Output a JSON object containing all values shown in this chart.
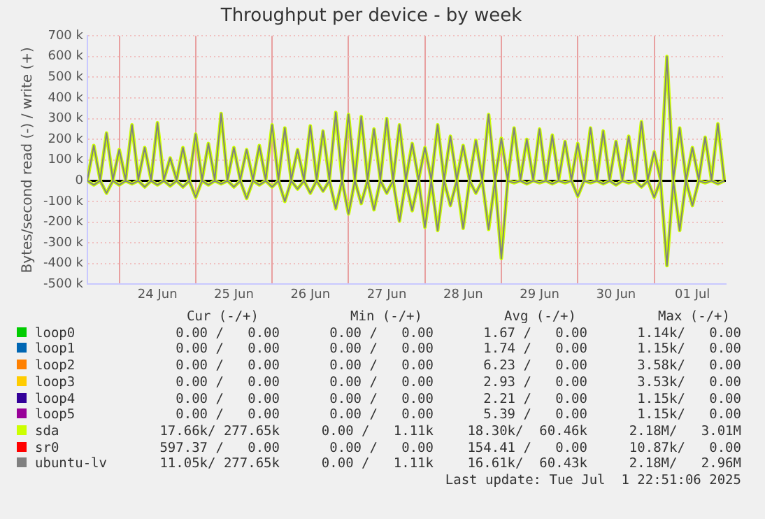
{
  "chart_data": {
    "type": "line",
    "title": "Throughput per device - by week",
    "ylabel": "Bytes/second read (-) / write (+)",
    "x": [
      "2025-06-23T14:00",
      "2025-06-23T16:00",
      "2025-06-23T18:00",
      "2025-06-23T20:00",
      "2025-06-23T22:00",
      "2025-06-24T00:00",
      "2025-06-24T02:00",
      "2025-06-24T04:00",
      "2025-06-24T06:00",
      "2025-06-24T08:00",
      "2025-06-24T10:00",
      "2025-06-24T12:00",
      "2025-06-24T14:00",
      "2025-06-24T16:00",
      "2025-06-24T18:00",
      "2025-06-24T20:00",
      "2025-06-24T22:00",
      "2025-06-25T00:00",
      "2025-06-25T02:00",
      "2025-06-25T04:00",
      "2025-06-25T06:00",
      "2025-06-25T08:00",
      "2025-06-25T10:00",
      "2025-06-25T12:00",
      "2025-06-25T14:00",
      "2025-06-25T16:00",
      "2025-06-25T18:00",
      "2025-06-25T20:00",
      "2025-06-25T22:00",
      "2025-06-26T00:00",
      "2025-06-26T02:00",
      "2025-06-26T04:00",
      "2025-06-26T06:00",
      "2025-06-26T08:00",
      "2025-06-26T10:00",
      "2025-06-26T12:00",
      "2025-06-26T14:00",
      "2025-06-26T16:00",
      "2025-06-26T18:00",
      "2025-06-26T20:00",
      "2025-06-26T22:00",
      "2025-06-27T00:00",
      "2025-06-27T02:00",
      "2025-06-27T04:00",
      "2025-06-27T06:00",
      "2025-06-27T08:00",
      "2025-06-27T10:00",
      "2025-06-27T12:00",
      "2025-06-27T14:00",
      "2025-06-27T16:00",
      "2025-06-27T18:00",
      "2025-06-27T20:00",
      "2025-06-27T22:00",
      "2025-06-28T00:00",
      "2025-06-28T02:00",
      "2025-06-28T04:00",
      "2025-06-28T06:00",
      "2025-06-28T08:00",
      "2025-06-28T10:00",
      "2025-06-28T12:00",
      "2025-06-28T14:00",
      "2025-06-28T16:00",
      "2025-06-28T18:00",
      "2025-06-28T20:00",
      "2025-06-28T22:00",
      "2025-06-29T00:00",
      "2025-06-29T02:00",
      "2025-06-29T04:00",
      "2025-06-29T06:00",
      "2025-06-29T08:00",
      "2025-06-29T10:00",
      "2025-06-29T12:00",
      "2025-06-29T14:00",
      "2025-06-29T16:00",
      "2025-06-29T18:00",
      "2025-06-29T20:00",
      "2025-06-29T22:00",
      "2025-06-30T00:00",
      "2025-06-30T02:00",
      "2025-06-30T04:00",
      "2025-06-30T06:00",
      "2025-06-30T08:00",
      "2025-06-30T10:00",
      "2025-06-30T12:00",
      "2025-06-30T14:00",
      "2025-06-30T16:00",
      "2025-06-30T18:00",
      "2025-06-30T20:00",
      "2025-06-30T22:00",
      "2025-07-01T00:00",
      "2025-07-01T02:00",
      "2025-07-01T04:00",
      "2025-07-01T06:00",
      "2025-07-01T08:00",
      "2025-07-01T10:00",
      "2025-07-01T12:00",
      "2025-07-01T14:00",
      "2025-07-01T16:00",
      "2025-07-01T18:00",
      "2025-07-01T20:00",
      "2025-07-01T22:00"
    ],
    "series": [
      {
        "name": "loop0",
        "color": "#00cc00",
        "values": [
          null,
          null,
          null,
          null,
          null,
          null,
          null,
          null,
          null,
          null,
          null,
          null,
          null,
          null,
          null,
          null,
          null,
          null,
          null,
          null,
          null,
          null,
          null,
          null,
          null,
          null,
          null,
          null,
          null,
          null,
          null,
          null,
          null,
          null,
          null,
          null,
          null,
          null,
          null,
          null,
          null,
          null,
          null,
          null,
          null,
          null,
          null,
          null,
          null,
          null,
          null,
          null,
          null,
          null,
          null,
          null,
          null,
          null,
          null,
          null,
          null,
          null,
          null,
          null,
          null,
          null,
          null,
          null,
          null,
          null,
          null,
          null,
          null,
          null,
          null,
          null,
          null,
          null,
          null,
          null,
          null,
          null,
          null,
          null,
          null,
          null,
          null,
          null,
          null,
          null,
          null,
          null,
          null,
          null,
          null,
          null,
          null,
          null,
          null,
          null,
          null
        ]
      },
      {
        "name": "loop1",
        "color": "#0066b3",
        "values": [
          null,
          null,
          null,
          null,
          null,
          null,
          null,
          null,
          null,
          null,
          null,
          null,
          null,
          null,
          null,
          null,
          null,
          null,
          null,
          null,
          null,
          null,
          null,
          null,
          null,
          null,
          null,
          null,
          null,
          null,
          null,
          null,
          null,
          null,
          null,
          null,
          null,
          null,
          null,
          null,
          null,
          null,
          null,
          null,
          null,
          null,
          null,
          null,
          null,
          null,
          null,
          null,
          null,
          null,
          null,
          null,
          null,
          null,
          null,
          null,
          null,
          null,
          null,
          null,
          null,
          null,
          null,
          null,
          null,
          null,
          null,
          null,
          null,
          null,
          null,
          null,
          null,
          null,
          null,
          null,
          null,
          null,
          null,
          null,
          null,
          null,
          null,
          null,
          null,
          null,
          null,
          null,
          null,
          null,
          null,
          null,
          null,
          null,
          null,
          null,
          null
        ]
      },
      {
        "name": "loop2",
        "color": "#ff8000",
        "values": [
          null,
          null,
          null,
          null,
          null,
          null,
          null,
          null,
          null,
          null,
          null,
          null,
          null,
          null,
          null,
          null,
          null,
          null,
          null,
          null,
          null,
          null,
          null,
          null,
          null,
          null,
          null,
          null,
          null,
          null,
          null,
          null,
          null,
          null,
          null,
          null,
          null,
          null,
          null,
          null,
          null,
          null,
          null,
          null,
          null,
          null,
          null,
          null,
          null,
          null,
          null,
          null,
          null,
          null,
          null,
          null,
          null,
          null,
          null,
          null,
          null,
          null,
          null,
          null,
          null,
          null,
          null,
          null,
          null,
          null,
          null,
          null,
          null,
          null,
          null,
          null,
          null,
          null,
          null,
          null,
          null,
          null,
          null,
          null,
          null,
          null,
          null,
          null,
          null,
          null,
          null,
          null,
          null,
          null,
          null,
          null,
          null,
          null,
          null,
          null,
          null
        ]
      },
      {
        "name": "loop3",
        "color": "#ffcc00",
        "values": [
          null,
          null,
          null,
          null,
          null,
          null,
          null,
          null,
          null,
          null,
          null,
          null,
          null,
          null,
          null,
          null,
          null,
          null,
          null,
          null,
          null,
          null,
          null,
          null,
          null,
          null,
          null,
          null,
          null,
          null,
          null,
          null,
          null,
          null,
          null,
          null,
          null,
          null,
          null,
          null,
          null,
          null,
          null,
          null,
          null,
          null,
          null,
          null,
          null,
          null,
          null,
          null,
          null,
          null,
          null,
          null,
          null,
          null,
          null,
          null,
          null,
          null,
          null,
          null,
          null,
          null,
          null,
          null,
          null,
          null,
          null,
          null,
          null,
          null,
          null,
          null,
          null,
          null,
          null,
          null,
          null,
          null,
          null,
          null,
          null,
          null,
          null,
          null,
          null,
          null,
          null,
          null,
          null,
          null,
          null,
          null,
          null,
          null,
          null,
          null,
          null
        ]
      },
      {
        "name": "loop4",
        "color": "#330099",
        "values": [
          null,
          null,
          null,
          null,
          null,
          null,
          null,
          null,
          null,
          null,
          null,
          null,
          null,
          null,
          null,
          null,
          null,
          null,
          null,
          null,
          null,
          null,
          null,
          null,
          null,
          null,
          null,
          null,
          null,
          null,
          null,
          null,
          null,
          null,
          null,
          null,
          null,
          null,
          null,
          null,
          null,
          null,
          null,
          null,
          null,
          null,
          null,
          null,
          null,
          null,
          null,
          null,
          null,
          null,
          null,
          null,
          null,
          null,
          null,
          null,
          null,
          null,
          null,
          null,
          null,
          null,
          null,
          null,
          null,
          null,
          null,
          null,
          null,
          null,
          null,
          null,
          null,
          null,
          null,
          null,
          null,
          null,
          null,
          null,
          null,
          null,
          null,
          null,
          null,
          null,
          null,
          null,
          null,
          null,
          null,
          null,
          null,
          null,
          null,
          null,
          null
        ]
      },
      {
        "name": "loop5",
        "color": "#990099",
        "values": [
          null,
          null,
          null,
          null,
          null,
          null,
          null,
          null,
          null,
          null,
          null,
          null,
          null,
          null,
          null,
          null,
          null,
          null,
          null,
          null,
          null,
          null,
          null,
          null,
          null,
          null,
          null,
          null,
          null,
          null,
          null,
          null,
          null,
          null,
          null,
          null,
          null,
          null,
          null,
          null,
          null,
          null,
          null,
          null,
          null,
          null,
          null,
          null,
          null,
          null,
          null,
          null,
          null,
          null,
          null,
          null,
          null,
          null,
          null,
          null,
          null,
          null,
          null,
          null,
          null,
          null,
          null,
          null,
          null,
          null,
          null,
          null,
          null,
          null,
          null,
          null,
          null,
          null,
          null,
          null,
          null,
          null,
          null,
          null,
          null,
          null,
          null,
          null,
          null,
          null,
          null,
          null,
          null,
          null,
          null,
          null,
          null,
          null,
          null,
          null,
          null
        ]
      },
      {
        "name": "sda",
        "color": "#ccff00",
        "values": [
          5000,
          170000,
          5000,
          230000,
          5000,
          150000,
          5000,
          270000,
          5000,
          160000,
          5000,
          280000,
          5000,
          110000,
          5000,
          160000,
          5000,
          225000,
          5000,
          180000,
          5000,
          325000,
          5000,
          160000,
          5000,
          150000,
          5000,
          170000,
          5000,
          270000,
          5000,
          255000,
          5000,
          150000,
          5000,
          265000,
          5000,
          240000,
          5000,
          330000,
          5000,
          320000,
          5000,
          310000,
          5000,
          250000,
          5000,
          300000,
          5000,
          270000,
          5000,
          180000,
          5000,
          160000,
          5000,
          270000,
          5000,
          215000,
          5000,
          170000,
          5000,
          195000,
          5000,
          320000,
          5000,
          205000,
          5000,
          255000,
          5000,
          200000,
          5000,
          250000,
          5000,
          220000,
          5000,
          190000,
          5000,
          180000,
          5000,
          255000,
          5000,
          240000,
          5000,
          190000,
          5000,
          215000,
          5000,
          285000,
          5000,
          140000,
          5000,
          600000,
          5000,
          255000,
          5000,
          160000,
          5000,
          210000,
          5000,
          275000,
          5000
        ]
      },
      {
        "color": "#ccff00",
        "values": [
          0,
          -20000,
          0,
          -60000,
          0,
          -20000,
          0,
          -15000,
          0,
          -30000,
          0,
          -20000,
          0,
          -25000,
          0,
          -30000,
          0,
          -80000,
          0,
          -20000,
          0,
          -15000,
          0,
          -30000,
          0,
          -85000,
          0,
          -20000,
          0,
          -30000,
          0,
          -100000,
          0,
          -40000,
          0,
          -60000,
          0,
          -50000,
          0,
          -135000,
          0,
          -160000,
          0,
          -110000,
          0,
          -140000,
          0,
          -60000,
          0,
          -195000,
          0,
          -145000,
          0,
          -225000,
          0,
          -240000,
          0,
          -120000,
          0,
          -230000,
          0,
          -60000,
          0,
          -235000,
          0,
          -375000,
          0,
          -10000,
          0,
          -15000,
          0,
          -10000,
          0,
          -15000,
          0,
          -10000,
          0,
          -75000,
          0,
          -10000,
          0,
          -15000,
          0,
          -20000,
          0,
          -10000,
          0,
          -30000,
          0,
          -80000,
          0,
          -410000,
          0,
          -240000,
          0,
          -120000,
          0,
          -10000,
          0,
          -15000,
          0
        ]
      },
      {
        "name": "sr0",
        "color": "#ff0000",
        "values": [
          null,
          null,
          null,
          null,
          null,
          null,
          null,
          null,
          null,
          null,
          null,
          null,
          null,
          null,
          null,
          null,
          null,
          null,
          null,
          null,
          null,
          null,
          null,
          null,
          null,
          null,
          null,
          null,
          null,
          null,
          null,
          null,
          null,
          null,
          null,
          null,
          null,
          null,
          null,
          null,
          null,
          null,
          null,
          null,
          null,
          null,
          null,
          null,
          null,
          null,
          null,
          null,
          null,
          null,
          null,
          null,
          null,
          null,
          null,
          null,
          null,
          null,
          null,
          null,
          null,
          null,
          null,
          null,
          null,
          null,
          null,
          null,
          null,
          null,
          null,
          null,
          null,
          null,
          null,
          null,
          null,
          null,
          null,
          null,
          null,
          null,
          null,
          null,
          null,
          null,
          null,
          null,
          null,
          null,
          null,
          null,
          null,
          null,
          null,
          null,
          null
        ]
      },
      {
        "name": "ubuntu-lv",
        "color": "#808080",
        "values": [
          5000,
          170000,
          5000,
          230000,
          5000,
          150000,
          5000,
          270000,
          5000,
          160000,
          5000,
          280000,
          5000,
          110000,
          5000,
          160000,
          5000,
          225000,
          5000,
          180000,
          5000,
          325000,
          5000,
          160000,
          5000,
          150000,
          5000,
          170000,
          5000,
          270000,
          5000,
          255000,
          5000,
          150000,
          5000,
          265000,
          5000,
          240000,
          5000,
          330000,
          5000,
          320000,
          5000,
          310000,
          5000,
          250000,
          5000,
          300000,
          5000,
          270000,
          5000,
          180000,
          5000,
          160000,
          5000,
          270000,
          5000,
          215000,
          5000,
          170000,
          5000,
          195000,
          5000,
          320000,
          5000,
          205000,
          5000,
          255000,
          5000,
          200000,
          5000,
          250000,
          5000,
          220000,
          5000,
          190000,
          5000,
          180000,
          5000,
          255000,
          5000,
          240000,
          5000,
          190000,
          5000,
          215000,
          5000,
          285000,
          5000,
          140000,
          5000,
          600000,
          5000,
          255000,
          5000,
          160000,
          5000,
          210000,
          5000,
          275000,
          5000
        ]
      },
      {
        "color": "#808080",
        "values": [
          0,
          -20000,
          0,
          -60000,
          0,
          -20000,
          0,
          -15000,
          0,
          -30000,
          0,
          -20000,
          0,
          -25000,
          0,
          -30000,
          0,
          -80000,
          0,
          -20000,
          0,
          -15000,
          0,
          -30000,
          0,
          -85000,
          0,
          -20000,
          0,
          -30000,
          0,
          -100000,
          0,
          -40000,
          0,
          -60000,
          0,
          -50000,
          0,
          -135000,
          0,
          -160000,
          0,
          -110000,
          0,
          -140000,
          0,
          -60000,
          0,
          -195000,
          0,
          -145000,
          0,
          -225000,
          0,
          -240000,
          0,
          -120000,
          0,
          -230000,
          0,
          -60000,
          0,
          -235000,
          0,
          -375000,
          0,
          -10000,
          0,
          -15000,
          0,
          -10000,
          0,
          -15000,
          0,
          -10000,
          0,
          -75000,
          0,
          -10000,
          0,
          -15000,
          0,
          -20000,
          0,
          -10000,
          0,
          -30000,
          0,
          -80000,
          0,
          -410000,
          0,
          -240000,
          0,
          -120000,
          0,
          -10000,
          0,
          -15000,
          0
        ]
      }
    ],
    "xlim": [
      "2025-06-23T14:00",
      "2025-07-01T22:30"
    ],
    "xticks": [
      {
        "value": "2025-06-24T00:00",
        "label": null
      },
      {
        "value": "2025-06-24T12:00",
        "label": "24 Jun"
      },
      {
        "value": "2025-06-25T00:00",
        "label": null
      },
      {
        "value": "2025-06-25T12:00",
        "label": "25 Jun"
      },
      {
        "value": "2025-06-26T00:00",
        "label": null
      },
      {
        "value": "2025-06-26T12:00",
        "label": "26 Jun"
      },
      {
        "value": "2025-06-27T00:00",
        "label": null
      },
      {
        "value": "2025-06-27T12:00",
        "label": "27 Jun"
      },
      {
        "value": "2025-06-28T00:00",
        "label": null
      },
      {
        "value": "2025-06-28T12:00",
        "label": "28 Jun"
      },
      {
        "value": "2025-06-29T00:00",
        "label": null
      },
      {
        "value": "2025-06-29T12:00",
        "label": "29 Jun"
      },
      {
        "value": "2025-06-30T00:00",
        "label": null
      },
      {
        "value": "2025-06-30T12:00",
        "label": "30 Jun"
      },
      {
        "value": "2025-07-01T00:00",
        "label": null
      },
      {
        "value": "2025-07-01T12:00",
        "label": "01 Jul"
      }
    ],
    "ylim": [
      -500000,
      700000
    ],
    "yticks": [
      {
        "value": -500000,
        "label": "-500 k"
      },
      {
        "value": -400000,
        "label": "-400 k"
      },
      {
        "value": -300000,
        "label": "-300 k"
      },
      {
        "value": -200000,
        "label": "-200 k"
      },
      {
        "value": -100000,
        "label": "-100 k"
      },
      0,
      {
        "value": 100000,
        "label": "100 k"
      },
      {
        "value": 200000,
        "label": "200 k"
      },
      {
        "value": 300000,
        "label": "300 k"
      },
      {
        "value": 400000,
        "label": "400 k"
      },
      {
        "value": 500000,
        "label": "500 k"
      },
      {
        "value": 600000,
        "label": "600 k"
      },
      {
        "value": 700000,
        "label": "700 k"
      }
    ],
    "ref_lines": [
      {
        "axis": "y",
        "value": 0,
        "color": "#000000"
      }
    ],
    "grid": true,
    "legend": "bottom",
    "marker": "none",
    "annotations": [
      "Cur (-/+)",
      "Min (-/+)",
      "Avg (-/+)",
      "Max (-/+)",
      "0.00 /   0.00",
      "0.00 /   0.00",
      "1.67 /   0.00",
      "1.14k/   0.00",
      "0.00 /   0.00",
      "0.00 /   0.00",
      "1.74 /   0.00",
      "1.15k/   0.00",
      "0.00 /   0.00",
      "0.00 /   0.00",
      "6.23 /   0.00",
      "3.58k/   0.00",
      "0.00 /   0.00",
      "0.00 /   0.00",
      "2.93 /   0.00",
      "3.53k/   0.00",
      "0.00 /   0.00",
      "0.00 /   0.00",
      "2.21 /   0.00",
      "1.15k/   0.00",
      "0.00 /   0.00",
      "0.00 /   0.00",
      "5.39 /   0.00",
      "1.15k/   0.00",
      "17.66k/ 277.65k",
      "0.00 /   1.11k",
      "18.30k/  60.46k",
      "2.18M/   3.01M",
      "597.37 /   0.00",
      "0.00 /   0.00",
      "154.41 /   0.00",
      "10.87k/   0.00",
      "11.05k/ 277.65k",
      "0.00 /   1.11k",
      "16.61k/  60.43k",
      "2.18M/   2.96M",
      "Last update: Tue Jul  1 22:51:06 2025"
    ]
  }
}
